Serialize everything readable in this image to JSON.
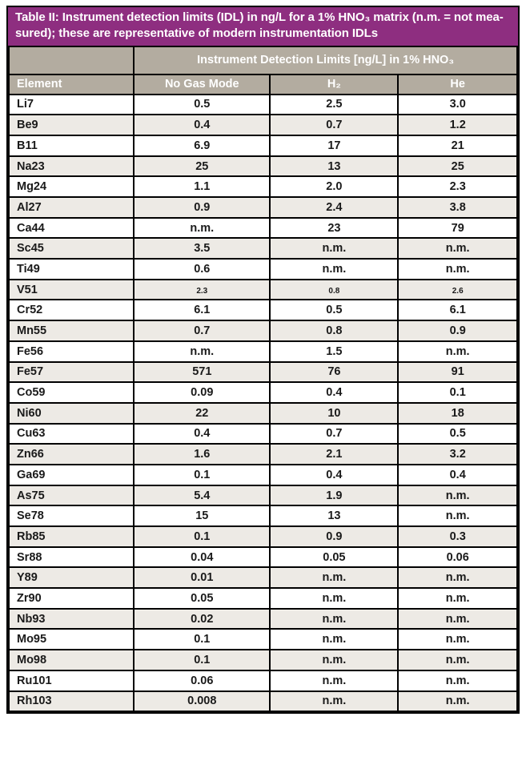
{
  "title": {
    "line1": "Table II: Instrument detection limits (IDL) in ng/L for a 1% HNO₃ matrix (n.m. = not mea-",
    "line2": "sured); these are representative of modern instrumentation IDLs"
  },
  "table": {
    "span_header": "Instrument Detection Limits [ng/L] in 1% HNO₃",
    "columns": [
      "Element",
      "No Gas Mode",
      "H₂",
      "He"
    ],
    "not_measured_label": "n.m.",
    "rows": [
      {
        "element": "Li7",
        "values": [
          "0.5",
          "2.5",
          "3.0"
        ]
      },
      {
        "element": "Be9",
        "values": [
          "0.4",
          "0.7",
          "1.2"
        ]
      },
      {
        "element": "B11",
        "values": [
          "6.9",
          "17",
          "21"
        ]
      },
      {
        "element": "Na23",
        "values": [
          "25",
          "13",
          "25"
        ]
      },
      {
        "element": "Mg24",
        "values": [
          "1.1",
          "2.0",
          "2.3"
        ]
      },
      {
        "element": "Al27",
        "values": [
          "0.9",
          "2.4",
          "3.8"
        ]
      },
      {
        "element": "Ca44",
        "values": [
          "n.m.",
          "23",
          "79"
        ]
      },
      {
        "element": "Sc45",
        "values": [
          "3.5",
          "n.m.",
          "n.m."
        ]
      },
      {
        "element": "Ti49",
        "values": [
          "0.6",
          "n.m.",
          "n.m."
        ]
      },
      {
        "element": "V51",
        "values": [
          "2.3",
          "0.8",
          "2.6"
        ],
        "small_values": true
      },
      {
        "element": "Cr52",
        "values": [
          "6.1",
          "0.5",
          "6.1"
        ]
      },
      {
        "element": "Mn55",
        "values": [
          "0.7",
          "0.8",
          "0.9"
        ]
      },
      {
        "element": "Fe56",
        "values": [
          "n.m.",
          "1.5",
          "n.m."
        ]
      },
      {
        "element": "Fe57",
        "values": [
          "571",
          "76",
          "91"
        ]
      },
      {
        "element": "Co59",
        "values": [
          "0.09",
          "0.4",
          "0.1"
        ]
      },
      {
        "element": "Ni60",
        "values": [
          "22",
          "10",
          "18"
        ]
      },
      {
        "element": "Cu63",
        "values": [
          "0.4",
          "0.7",
          "0.5"
        ]
      },
      {
        "element": "Zn66",
        "values": [
          "1.6",
          "2.1",
          "3.2"
        ]
      },
      {
        "element": "Ga69",
        "values": [
          "0.1",
          "0.4",
          "0.4"
        ]
      },
      {
        "element": "As75",
        "values": [
          "5.4",
          "1.9",
          "n.m."
        ]
      },
      {
        "element": "Se78",
        "values": [
          "15",
          "13",
          "n.m."
        ]
      },
      {
        "element": "Rb85",
        "values": [
          "0.1",
          "0.9",
          "0.3"
        ]
      },
      {
        "element": "Sr88",
        "values": [
          "0.04",
          "0.05",
          "0.06"
        ]
      },
      {
        "element": "Y89",
        "values": [
          "0.01",
          "n.m.",
          "n.m."
        ]
      },
      {
        "element": "Zr90",
        "values": [
          "0.05",
          "n.m.",
          "n.m."
        ]
      },
      {
        "element": "Nb93",
        "values": [
          "0.02",
          "n.m.",
          "n.m."
        ]
      },
      {
        "element": "Mo95",
        "values": [
          "0.1",
          "n.m.",
          "n.m."
        ]
      },
      {
        "element": "Mo98",
        "values": [
          "0.1",
          "n.m.",
          "n.m."
        ]
      },
      {
        "element": "Ru101",
        "values": [
          "0.06",
          "n.m.",
          "n.m."
        ]
      },
      {
        "element": "Rh103",
        "values": [
          "0.008",
          "n.m.",
          "n.m."
        ]
      }
    ]
  },
  "colors": {
    "header_purple": "#8e2e80",
    "header_taupe": "#b3aca0",
    "row_stripe": "#edeae5",
    "border": "#000000",
    "text": "#1a1a1a",
    "header_text": "#ffffff"
  }
}
